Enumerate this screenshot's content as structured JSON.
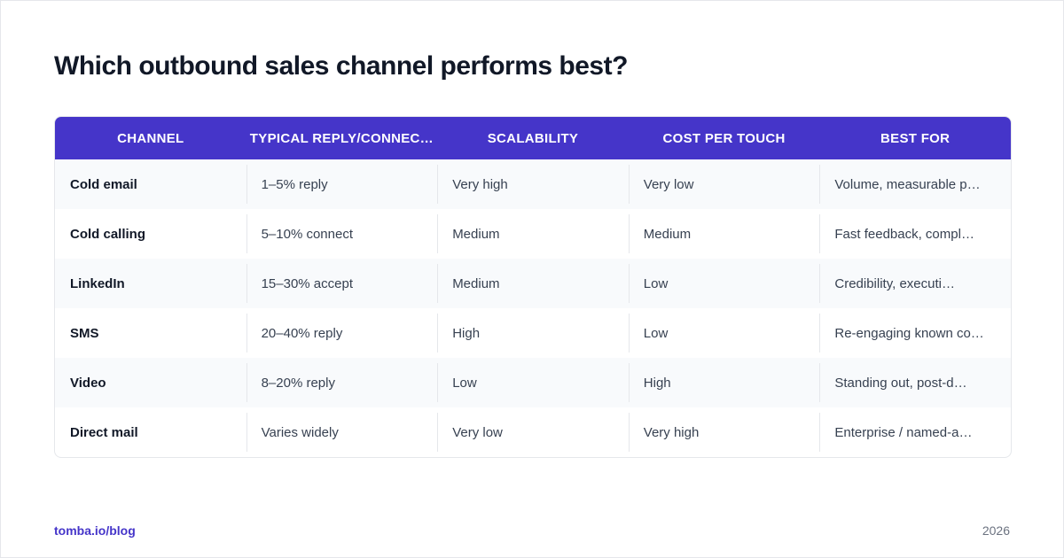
{
  "title": "Which outbound sales channel performs best?",
  "table": {
    "header": [
      "CHANNEL",
      "TYPICAL REPLY/CONNEC…",
      "SCALABILITY",
      "COST PER TOUCH",
      "BEST FOR"
    ],
    "rows": [
      [
        "Cold email",
        "1–5% reply",
        "Very high",
        "Very low",
        "Volume, measurable p…"
      ],
      [
        "Cold calling",
        "5–10% connect",
        "Medium",
        "Medium",
        "Fast feedback, compl…"
      ],
      [
        "LinkedIn",
        "15–30% accept",
        "Medium",
        "Low",
        "Credibility, executi…"
      ],
      [
        "SMS",
        "20–40% reply",
        "High",
        "Low",
        "Re-engaging known co…"
      ],
      [
        "Video",
        "8–20% reply",
        "Low",
        "High",
        "Standing out, post-d…"
      ],
      [
        "Direct mail",
        "Varies widely",
        "Very low",
        "Very high",
        "Enterprise / named-a…"
      ]
    ]
  },
  "footer": {
    "source": "tomba.io/blog",
    "year": "2026"
  }
}
